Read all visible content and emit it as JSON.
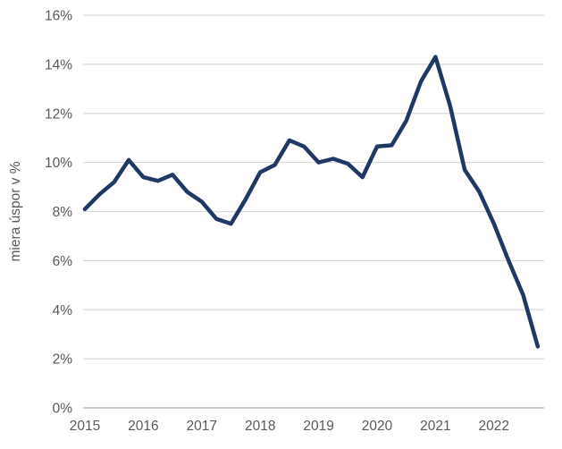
{
  "chart_data": {
    "type": "line",
    "title": "",
    "xlabel": "",
    "ylabel": "miera úspor v %",
    "x_tick_labels": [
      "2015",
      "2016",
      "2017",
      "2018",
      "2019",
      "2020",
      "2021",
      "2022"
    ],
    "y_tick_labels": [
      "0%",
      "2%",
      "4%",
      "6%",
      "8%",
      "10%",
      "12%",
      "14%",
      "16%"
    ],
    "ylim": [
      0,
      16
    ],
    "y_tick_step": 2,
    "grid": "horizontal",
    "legend_position": "none",
    "series": [
      {
        "name": "miera úspor v %",
        "x": [
          "2015 Q1",
          "2015 Q2",
          "2015 Q3",
          "2015 Q4",
          "2016 Q1",
          "2016 Q2",
          "2016 Q3",
          "2016 Q4",
          "2017 Q1",
          "2017 Q2",
          "2017 Q3",
          "2017 Q4",
          "2018 Q1",
          "2018 Q2",
          "2018 Q3",
          "2018 Q4",
          "2019 Q1",
          "2019 Q2",
          "2019 Q3",
          "2019 Q4",
          "2020 Q1",
          "2020 Q2",
          "2020 Q3",
          "2020 Q4",
          "2021 Q1",
          "2021 Q2",
          "2021 Q3",
          "2021 Q4",
          "2022 Q1",
          "2022 Q2",
          "2022 Q3",
          "2022 Q4"
        ],
        "values": [
          8.1,
          8.7,
          9.2,
          10.1,
          9.4,
          9.25,
          9.5,
          8.8,
          8.4,
          7.7,
          7.5,
          8.5,
          9.6,
          9.9,
          10.9,
          10.65,
          10.0,
          10.15,
          9.95,
          9.4,
          10.65,
          10.7,
          11.7,
          13.3,
          14.3,
          12.3,
          9.7,
          8.8,
          7.5,
          6.0,
          4.6,
          2.5
        ]
      }
    ]
  },
  "style": {
    "line_color": "#1F3864",
    "gridline_color": "#D9D9D9",
    "axis_line_color": "#BFBFBF",
    "tick_label_color": "#595959",
    "axis_title_color": "#595959",
    "background_color": "#FFFFFF"
  }
}
